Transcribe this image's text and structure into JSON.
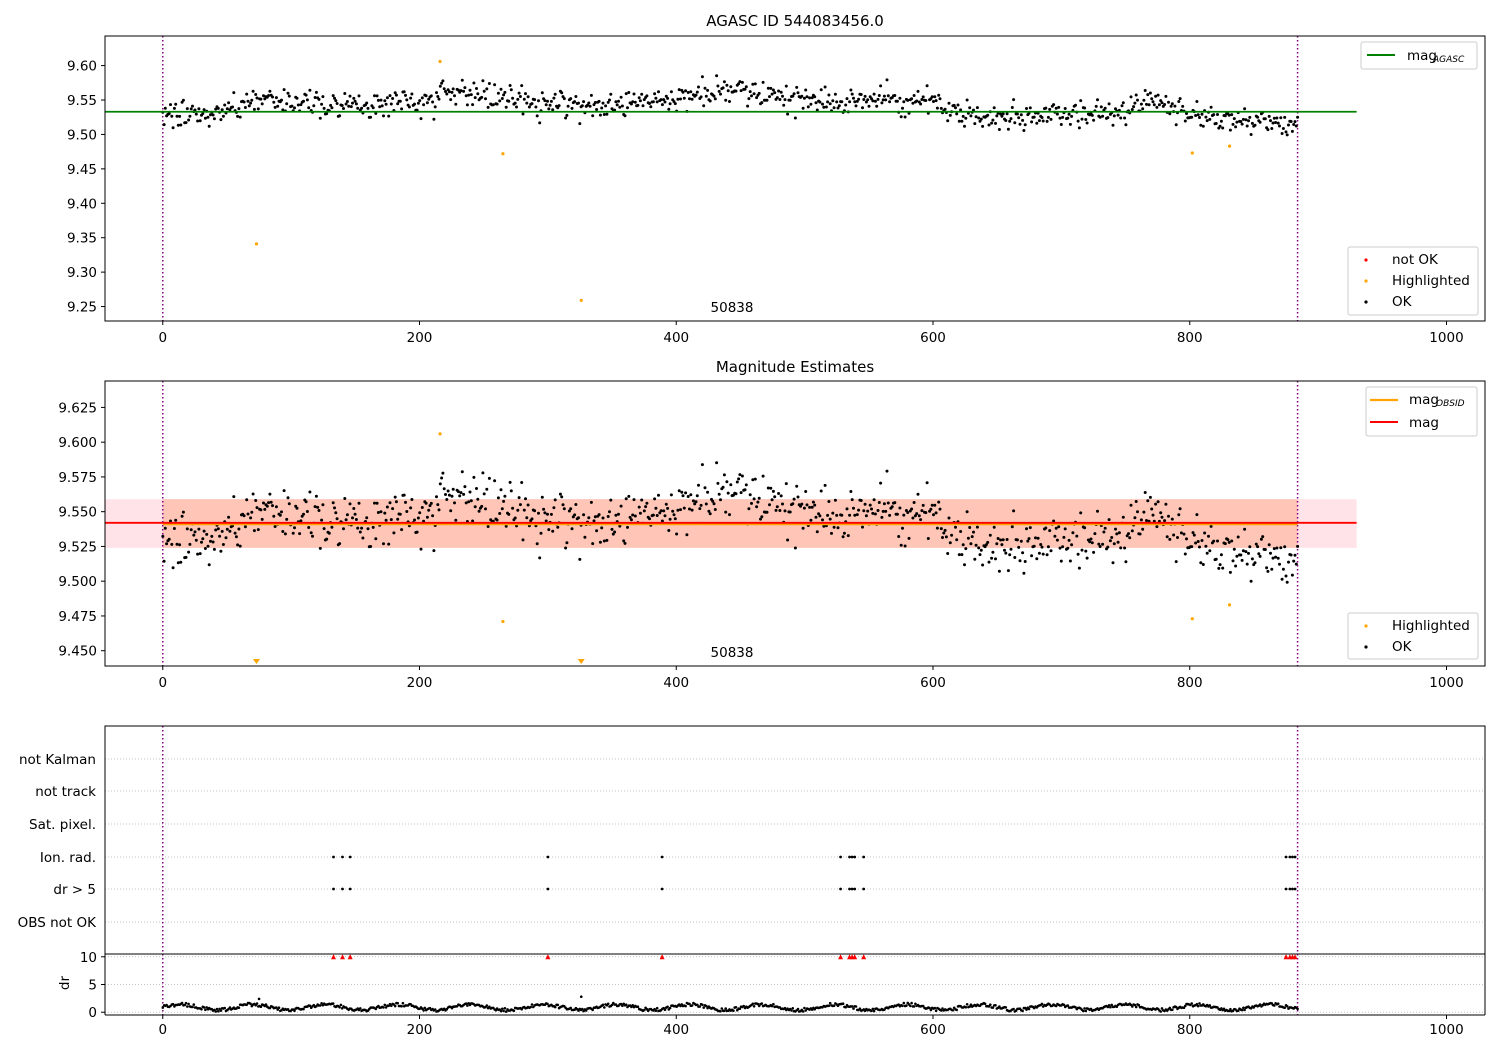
{
  "colors": {
    "ok": "#000000",
    "not_ok": "#ff0000",
    "highlighted": "#ffa500",
    "mag_agasc_line": "#008000",
    "mag_line": "#ff0000",
    "mag_obsid_line": "#ffa500",
    "band_pink": "#ffc0cb",
    "band_orange": "#ffa07a",
    "obs_boundary": "#800080"
  },
  "chart_data": [
    {
      "type": "scatter",
      "title": "AGASC ID 544083456.0",
      "xlim": [
        -45,
        1030
      ],
      "ylim": [
        9.229,
        9.643
      ],
      "xticks": [
        0,
        200,
        400,
        600,
        800,
        1000
      ],
      "yticks": [
        9.25,
        9.3,
        9.35,
        9.4,
        9.45,
        9.5,
        9.55,
        9.6
      ],
      "ytick_labels": [
        "9.25",
        "9.30",
        "9.35",
        "9.40",
        "9.45",
        "9.50",
        "9.55",
        "9.60"
      ],
      "obs_label": "50838",
      "obs_boundaries": [
        0,
        884
      ],
      "hline": {
        "y": 9.533,
        "x_end": 930
      },
      "legend_lines": [
        {
          "label": "mag",
          "sub": "AGASC",
          "color_key": "mag_agasc_line"
        }
      ],
      "legend_points": [
        {
          "label": "not OK",
          "color_key": "not_ok"
        },
        {
          "label": "Highlighted",
          "color_key": "highlighted"
        },
        {
          "label": "OK",
          "color_key": "ok"
        }
      ],
      "highlighted": [
        [
          73,
          9.341
        ],
        [
          216,
          9.606
        ],
        [
          265,
          9.472
        ],
        [
          326,
          9.259
        ],
        [
          802,
          9.473
        ],
        [
          831,
          9.483
        ]
      ],
      "ok_model": {
        "n": 880,
        "x_start": 0,
        "x_end": 884
      }
    },
    {
      "type": "scatter",
      "title": "Magnitude Estimates",
      "xlim": [
        -45,
        1030
      ],
      "ylim": [
        9.439,
        9.644
      ],
      "xticks": [
        0,
        200,
        400,
        600,
        800,
        1000
      ],
      "yticks": [
        9.45,
        9.475,
        9.5,
        9.525,
        9.55,
        9.575,
        9.6,
        9.625
      ],
      "ytick_labels": [
        "9.450",
        "9.475",
        "9.500",
        "9.525",
        "9.550",
        "9.575",
        "9.600",
        "9.625"
      ],
      "obs_label": "50838",
      "obs_boundaries": [
        0,
        884
      ],
      "mag": 9.542,
      "mag_obsid": 9.541,
      "band_pink": [
        9.524,
        9.559
      ],
      "band_orange": [
        9.524,
        9.559
      ],
      "line_x_end": 930,
      "legend_lines": [
        {
          "label": "mag",
          "sub": "OBSID",
          "color_key": "mag_obsid_line"
        },
        {
          "label": "mag",
          "sub": "",
          "color_key": "mag_line"
        }
      ],
      "legend_points": [
        {
          "label": "Highlighted",
          "color_key": "highlighted"
        },
        {
          "label": "OK",
          "color_key": "ok"
        }
      ],
      "highlighted": [
        [
          216,
          9.606
        ],
        [
          265,
          9.471
        ],
        [
          802,
          9.473
        ],
        [
          831,
          9.483
        ]
      ],
      "below_markers": [
        73,
        326
      ],
      "ok_model": {
        "n": 880,
        "x_start": 0,
        "x_end": 884
      }
    },
    {
      "type": "scatter",
      "xlim": [
        -45,
        1030
      ],
      "xticks": [
        0,
        200,
        400,
        600,
        800,
        1000
      ],
      "flag_rows": [
        "not Kalman",
        "not track",
        "Sat. pixel.",
        "Ion. rad.",
        "dr > 5",
        "OBS not OK"
      ],
      "flag_x": {
        "Ion. rad.": [
          133,
          140,
          146,
          300,
          389,
          528,
          535,
          537,
          539,
          546,
          875,
          878,
          880,
          882
        ],
        "dr > 5": [
          133,
          140,
          146,
          300,
          389,
          528,
          535,
          537,
          539,
          546,
          875,
          878,
          880,
          882
        ]
      },
      "dr": {
        "ylabel": "dr",
        "ylim": [
          -0.5,
          10.5
        ],
        "yticks": [
          0,
          5,
          10
        ],
        "outliers_x": [
          133,
          140,
          146,
          300,
          389,
          528,
          535,
          537,
          539,
          546,
          875,
          878,
          880,
          882
        ],
        "outlier_value": 10
      }
    }
  ]
}
